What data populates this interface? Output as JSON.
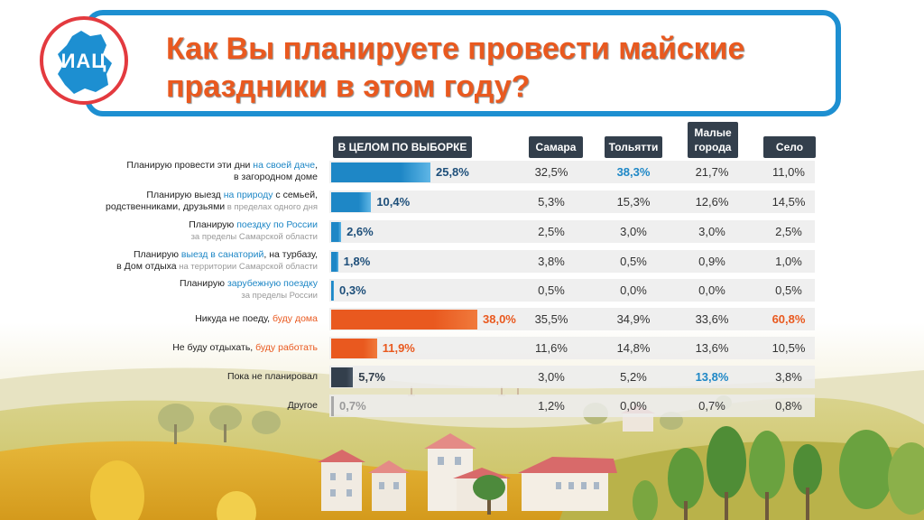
{
  "title": "Как Вы планируете провести майские праздники в этом году?",
  "logo_text": "ИАЦ",
  "chart_data": {
    "type": "bar",
    "orientation": "horizontal",
    "title": "Как Вы планируете провести майские праздники в этом году?",
    "columns": {
      "overall": "В ЦЕЛОМ ПО ВЫБОРКЕ",
      "samara": "Самара",
      "tolyatti": "Тольятти",
      "small_towns": "Малые города",
      "village": "Село"
    },
    "xlim": [
      0,
      40
    ],
    "rows": [
      {
        "label_parts": [
          "Планирую провести эти дни ",
          "на своей даче",
          ","
        ],
        "label_line2": "в загородном доме",
        "label_sub": "",
        "value": 25.8,
        "value_text": "25,8%",
        "color": "#1e87c6",
        "samara": "32,5%",
        "tolyatti": "38,3%",
        "small_towns": "21,7%",
        "village": "11,0%",
        "highlight": "tolyatti"
      },
      {
        "label_parts": [
          "Планирую выезд ",
          "на природу",
          " с семьей,"
        ],
        "label_line2": "родственниками, друзьями",
        "label_sub": " в пределах одного дня",
        "value": 10.4,
        "value_text": "10,4%",
        "color": "#1e87c6",
        "samara": "5,3%",
        "tolyatti": "15,3%",
        "small_towns": "12,6%",
        "village": "14,5%",
        "highlight": ""
      },
      {
        "label_parts": [
          "Планирую ",
          "поездку по России",
          ""
        ],
        "label_line2": "",
        "label_sub": "за пределы Самарской области",
        "value": 2.6,
        "value_text": "2,6%",
        "color": "#1e87c6",
        "samara": "2,5%",
        "tolyatti": "3,0%",
        "small_towns": "3,0%",
        "village": "2,5%",
        "highlight": ""
      },
      {
        "label_parts": [
          "Планирую ",
          "выезд в санаторий",
          ", на турбазу,"
        ],
        "label_line2": "в Дом отдыха",
        "label_sub": " на территории Самарской области",
        "value": 1.8,
        "value_text": "1,8%",
        "color": "#1e87c6",
        "samara": "3,8%",
        "tolyatti": "0,5%",
        "small_towns": "0,9%",
        "village": "1,0%",
        "highlight": ""
      },
      {
        "label_parts": [
          "Планирую ",
          "зарубежную поездку",
          ""
        ],
        "label_line2": "",
        "label_sub": "за пределы России",
        "value": 0.3,
        "value_text": "0,3%",
        "color": "#1e87c6",
        "samara": "0,5%",
        "tolyatti": "0,0%",
        "small_towns": "0,0%",
        "village": "0,5%",
        "highlight": ""
      },
      {
        "label_parts": [
          "Никуда не поеду, ",
          "буду дома",
          ""
        ],
        "label_line2": "",
        "label_sub": "",
        "value": 38.0,
        "value_text": "38,0%",
        "color": "#e9591f",
        "samara": "35,5%",
        "tolyatti": "34,9%",
        "small_towns": "33,6%",
        "village": "60,8%",
        "highlight": "village"
      },
      {
        "label_parts": [
          "Не буду отдыхать, ",
          "буду работать",
          ""
        ],
        "label_line2": "",
        "label_sub": "",
        "value": 11.9,
        "value_text": "11,9%",
        "color": "#e9591f",
        "samara": "11,6%",
        "tolyatti": "14,8%",
        "small_towns": "13,6%",
        "village": "10,5%",
        "highlight": ""
      },
      {
        "label_parts": [
          "Пока не планировал",
          "",
          ""
        ],
        "label_line2": "",
        "label_sub": "",
        "value": 5.7,
        "value_text": "5,7%",
        "color": "#333f4c",
        "samara": "3,0%",
        "tolyatti": "5,2%",
        "small_towns": "13,8%",
        "village": "3,8%",
        "highlight": "small_towns"
      },
      {
        "label_parts": [
          "Другое",
          "",
          ""
        ],
        "label_line2": "",
        "label_sub": "",
        "value": 0.7,
        "value_text": "0,7%",
        "color": "#a9a9a9",
        "samara": "1,2%",
        "tolyatti": "0,0%",
        "small_towns": "0,7%",
        "village": "0,8%",
        "highlight": ""
      }
    ]
  }
}
